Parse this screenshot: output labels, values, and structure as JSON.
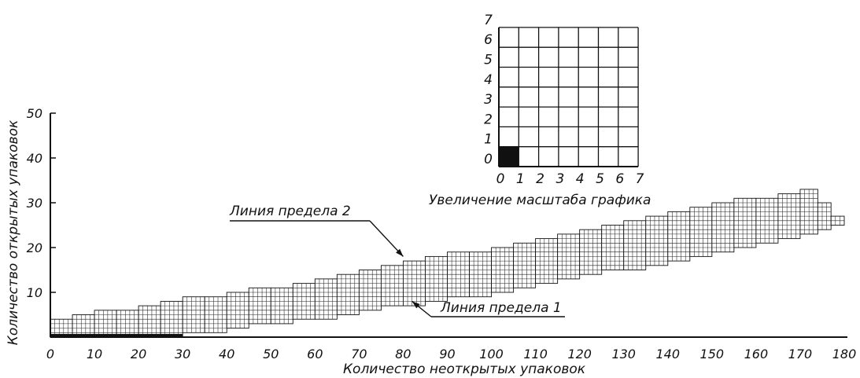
{
  "chart_data": [
    {
      "type": "heatmap",
      "title": "",
      "xlabel": "Количество неоткрытых упаковок",
      "ylabel": "Количество открытых упаковок",
      "xlim": [
        0,
        180
      ],
      "ylim": [
        0,
        50
      ],
      "xticks": [
        "0",
        "10",
        "20",
        "30",
        "40",
        "50",
        "60",
        "70",
        "80",
        "90",
        "100",
        "110",
        "120",
        "130",
        "140",
        "150",
        "160",
        "170",
        "180"
      ],
      "yticks": [
        "10",
        "20",
        "30",
        "40",
        "50"
      ],
      "grid": false,
      "band_columns": [
        {
          "x": [
            0,
            5
          ],
          "y": [
            0,
            4
          ]
        },
        {
          "x": [
            5,
            10
          ],
          "y": [
            0,
            5
          ]
        },
        {
          "x": [
            10,
            15
          ],
          "y": [
            0,
            6
          ]
        },
        {
          "x": [
            15,
            20
          ],
          "y": [
            0,
            6
          ]
        },
        {
          "x": [
            20,
            25
          ],
          "y": [
            0,
            7
          ]
        },
        {
          "x": [
            25,
            30
          ],
          "y": [
            0,
            8
          ]
        },
        {
          "x": [
            30,
            35
          ],
          "y": [
            1,
            9
          ]
        },
        {
          "x": [
            35,
            40
          ],
          "y": [
            1,
            9
          ]
        },
        {
          "x": [
            40,
            45
          ],
          "y": [
            2,
            10
          ]
        },
        {
          "x": [
            45,
            50
          ],
          "y": [
            3,
            11
          ]
        },
        {
          "x": [
            50,
            55
          ],
          "y": [
            3,
            11
          ]
        },
        {
          "x": [
            55,
            60
          ],
          "y": [
            4,
            12
          ]
        },
        {
          "x": [
            60,
            65
          ],
          "y": [
            4,
            13
          ]
        },
        {
          "x": [
            65,
            70
          ],
          "y": [
            5,
            14
          ]
        },
        {
          "x": [
            70,
            75
          ],
          "y": [
            6,
            15
          ]
        },
        {
          "x": [
            75,
            80
          ],
          "y": [
            7,
            16
          ]
        },
        {
          "x": [
            80,
            85
          ],
          "y": [
            7,
            17
          ]
        },
        {
          "x": [
            85,
            90
          ],
          "y": [
            8,
            18
          ]
        },
        {
          "x": [
            90,
            95
          ],
          "y": [
            9,
            19
          ]
        },
        {
          "x": [
            95,
            100
          ],
          "y": [
            9,
            19
          ]
        },
        {
          "x": [
            100,
            105
          ],
          "y": [
            10,
            20
          ]
        },
        {
          "x": [
            105,
            110
          ],
          "y": [
            11,
            21
          ]
        },
        {
          "x": [
            110,
            115
          ],
          "y": [
            12,
            22
          ]
        },
        {
          "x": [
            115,
            120
          ],
          "y": [
            13,
            23
          ]
        },
        {
          "x": [
            120,
            125
          ],
          "y": [
            14,
            24
          ]
        },
        {
          "x": [
            125,
            130
          ],
          "y": [
            15,
            25
          ]
        },
        {
          "x": [
            130,
            135
          ],
          "y": [
            15,
            26
          ]
        },
        {
          "x": [
            135,
            140
          ],
          "y": [
            16,
            27
          ]
        },
        {
          "x": [
            140,
            145
          ],
          "y": [
            17,
            28
          ]
        },
        {
          "x": [
            145,
            150
          ],
          "y": [
            18,
            29
          ]
        },
        {
          "x": [
            150,
            155
          ],
          "y": [
            19,
            30
          ]
        },
        {
          "x": [
            155,
            160
          ],
          "y": [
            20,
            31
          ]
        },
        {
          "x": [
            160,
            165
          ],
          "y": [
            21,
            31
          ]
        },
        {
          "x": [
            165,
            170
          ],
          "y": [
            22,
            32
          ]
        },
        {
          "x": [
            170,
            174
          ],
          "y": [
            23,
            33
          ]
        },
        {
          "x": [
            174,
            177
          ],
          "y": [
            24,
            30
          ]
        },
        {
          "x": [
            177,
            180
          ],
          "y": [
            25,
            27
          ]
        }
      ],
      "annotations": [
        {
          "text": "Линия предела 2",
          "points_to": [
            80,
            18
          ]
        },
        {
          "text": "Линия предела 1",
          "points_to": [
            82,
            8
          ]
        }
      ]
    },
    {
      "type": "heatmap",
      "title": "Увеличение масштаба графика",
      "xticks": [
        "0",
        "1",
        "2",
        "3",
        "4",
        "5",
        "6",
        "7"
      ],
      "yticks": [
        "0",
        "1",
        "2",
        "3",
        "4",
        "5",
        "6",
        "7"
      ],
      "xlim": [
        0,
        7
      ],
      "ylim": [
        0,
        7
      ],
      "grid": true,
      "filled_cells": [
        [
          0,
          0
        ]
      ]
    }
  ]
}
